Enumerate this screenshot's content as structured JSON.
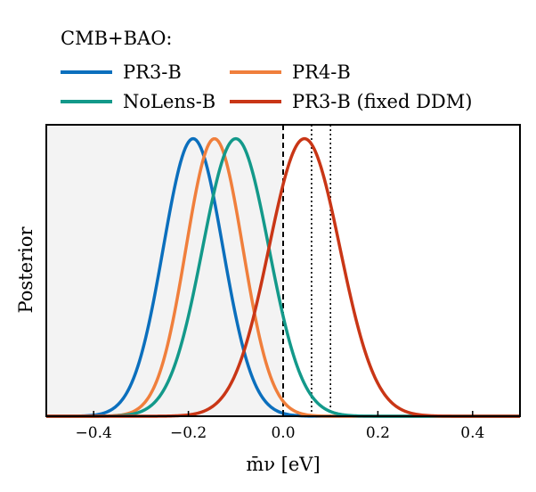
{
  "chart_data": {
    "type": "line",
    "legend_title": "CMB+BAO:",
    "legend_position": "top",
    "xlabel": "m̄ν [eV]",
    "ylabel": "Posterior",
    "xlim": [
      -0.5,
      0.5
    ],
    "ylim": [
      0,
      1.05
    ],
    "xticks": [
      -0.4,
      -0.2,
      0.0,
      0.2,
      0.4
    ],
    "xtick_labels": [
      "−0.4",
      "−0.2",
      "0.0",
      "0.2",
      "0.4"
    ],
    "shaded_region": {
      "from": -0.5,
      "to": 0.0,
      "color": "#f3f3f3"
    },
    "vlines": [
      {
        "x": 0.0,
        "style": "dashed"
      },
      {
        "x": 0.06,
        "style": "dotted"
      },
      {
        "x": 0.1,
        "style": "dotted"
      }
    ],
    "series": [
      {
        "name": "PR3-B",
        "color": "#0b6fbd",
        "mean": -0.19,
        "sigma": 0.063
      },
      {
        "name": "PR4-B",
        "color": "#f07f3c",
        "mean": -0.145,
        "sigma": 0.06
      },
      {
        "name": "NoLens-B",
        "color": "#13998a",
        "mean": -0.1,
        "sigma": 0.07
      },
      {
        "name": "PR3-B (fixed DDM)",
        "color": "#c93616",
        "mean": 0.045,
        "sigma": 0.075
      }
    ]
  }
}
